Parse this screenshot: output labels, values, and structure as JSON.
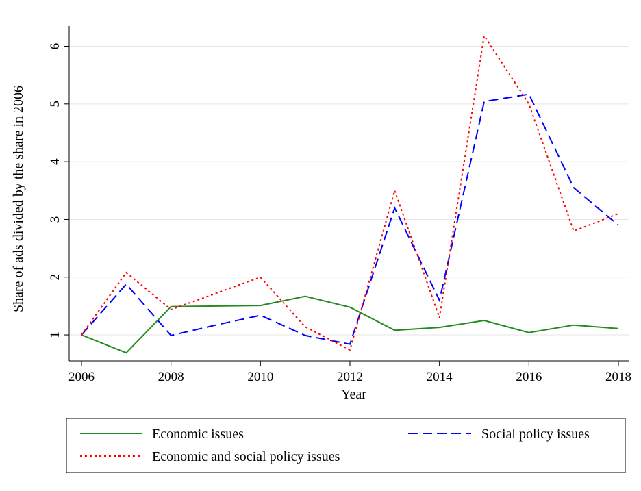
{
  "chart_data": {
    "type": "line",
    "xlabel": "Year",
    "ylabel": "Share of ads divided by the share in 2006",
    "xlim": [
      2006,
      2018
    ],
    "ylim": [
      0.55,
      6.35
    ],
    "xticks": [
      "2006",
      "2008",
      "2010",
      "2012",
      "2014",
      "2016",
      "2018"
    ],
    "yticks": [
      "1",
      "2",
      "3",
      "4",
      "5",
      "6"
    ],
    "grid": true,
    "legend_position": "bottom",
    "x": [
      2006,
      2007,
      2008,
      2009,
      2010,
      2011,
      2012,
      2013,
      2014,
      2015,
      2016,
      2017,
      2018
    ],
    "series": [
      {
        "name": "Economic issues",
        "color": "#228b22",
        "style": "solid",
        "values": [
          1.0,
          0.69,
          1.49,
          1.5,
          1.51,
          1.67,
          1.48,
          1.08,
          1.13,
          1.25,
          1.04,
          1.17,
          1.11
        ]
      },
      {
        "name": "Social policy issues",
        "color": "#0000ff",
        "style": "dashed",
        "values": [
          1.0,
          1.88,
          0.99,
          1.17,
          1.34,
          0.99,
          0.84,
          3.2,
          1.6,
          5.04,
          5.17,
          3.55,
          2.9
        ]
      },
      {
        "name": "Economic and social policy issues",
        "color": "#ff0000",
        "style": "dotted",
        "values": [
          1.0,
          2.08,
          1.44,
          1.72,
          2.0,
          1.14,
          0.74,
          3.5,
          1.3,
          6.18,
          5.0,
          2.8,
          3.1
        ]
      }
    ]
  }
}
